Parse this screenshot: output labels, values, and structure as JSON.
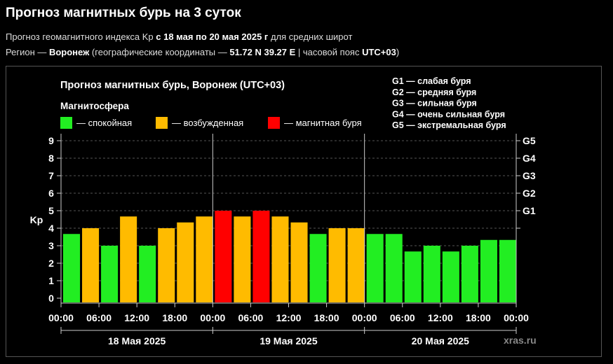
{
  "header": {
    "title": "Прогноз магнитных бурь на 3 суток",
    "sub1_prefix": "Прогноз геомагнитного индекса Kp ",
    "sub1_bold": "с 18 мая по 20 мая 2025 г",
    "sub1_suffix": " для средних широт",
    "sub2_prefix": "Регион — ",
    "sub2_region": "Воронеж",
    "sub2_mid": " (географические координаты — ",
    "sub2_coords": "51.72 N 39.27 E",
    "sub2_mid2": " | часовой пояс ",
    "sub2_tz": "UTC+03",
    "sub2_suffix": ")"
  },
  "chart_data": {
    "type": "bar",
    "title": "Прогноз магнитных бурь, Воронеж (UTC+03)",
    "legend_title": "Магнитосфера",
    "legend": [
      {
        "key": "calm",
        "label": "— спокойная",
        "color": "#22ee22"
      },
      {
        "key": "excited",
        "label": "— возбужденная",
        "color": "#ffbb00"
      },
      {
        "key": "storm",
        "label": "— магнитная буря",
        "color": "#ff0000"
      }
    ],
    "g_legend": [
      "G1 — слабая буря",
      "G2 — средняя буря",
      "G3 — сильная буря",
      "G4 — очень сильная буря",
      "G5 — экстремальная буря"
    ],
    "ylabel": "Kp",
    "ylim": [
      0,
      9
    ],
    "yticks": [
      "0",
      "1",
      "2",
      "3",
      "4",
      "5",
      "6",
      "7",
      "8",
      "9"
    ],
    "right_ticks": [
      {
        "value": 4,
        "label": ""
      },
      {
        "value": 5,
        "label": "G1"
      },
      {
        "value": 6,
        "label": "G2"
      },
      {
        "value": 7,
        "label": "G3"
      },
      {
        "value": 8,
        "label": "G4"
      },
      {
        "value": 9,
        "label": "G5"
      }
    ],
    "xtick_labels": [
      "00:00",
      "06:00",
      "12:00",
      "18:00",
      "00:00",
      "06:00",
      "12:00",
      "18:00",
      "00:00",
      "06:00",
      "12:00",
      "18:00",
      "00:00"
    ],
    "days": [
      "18 Мая 2025",
      "19 Мая 2025",
      "20 Мая 2025"
    ],
    "values": [
      3.67,
      4.0,
      3.0,
      4.67,
      3.0,
      4.0,
      4.33,
      4.67,
      5.0,
      4.67,
      5.0,
      4.67,
      4.33,
      3.67,
      4.0,
      4.0,
      3.67,
      3.67,
      2.67,
      3.0,
      2.67,
      3.0,
      3.33,
      3.33
    ],
    "grid": true,
    "watermark": "xras.ru"
  }
}
